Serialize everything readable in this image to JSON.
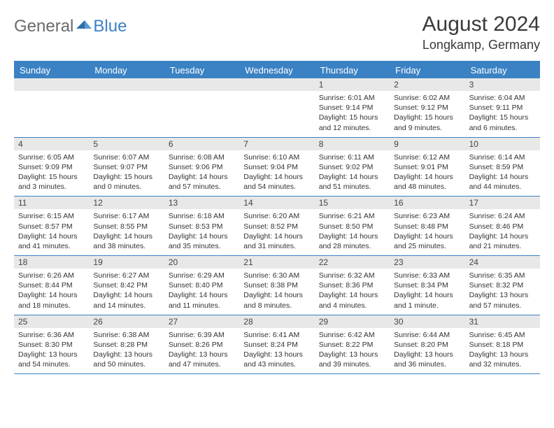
{
  "logo": {
    "text1": "General",
    "text2": "Blue"
  },
  "title": "August 2024",
  "location": "Longkamp, Germany",
  "colors": {
    "accent": "#3b82c4",
    "headerText": "#ffffff",
    "dayNumBg": "#e8e8e8",
    "bodyText": "#333333",
    "logoGray": "#6b6b6b"
  },
  "dayNames": [
    "Sunday",
    "Monday",
    "Tuesday",
    "Wednesday",
    "Thursday",
    "Friday",
    "Saturday"
  ],
  "weeks": [
    [
      null,
      null,
      null,
      null,
      {
        "n": "1",
        "sr": "6:01 AM",
        "ss": "9:14 PM",
        "dl": "15 hours and 12 minutes."
      },
      {
        "n": "2",
        "sr": "6:02 AM",
        "ss": "9:12 PM",
        "dl": "15 hours and 9 minutes."
      },
      {
        "n": "3",
        "sr": "6:04 AM",
        "ss": "9:11 PM",
        "dl": "15 hours and 6 minutes."
      }
    ],
    [
      {
        "n": "4",
        "sr": "6:05 AM",
        "ss": "9:09 PM",
        "dl": "15 hours and 3 minutes."
      },
      {
        "n": "5",
        "sr": "6:07 AM",
        "ss": "9:07 PM",
        "dl": "15 hours and 0 minutes."
      },
      {
        "n": "6",
        "sr": "6:08 AM",
        "ss": "9:06 PM",
        "dl": "14 hours and 57 minutes."
      },
      {
        "n": "7",
        "sr": "6:10 AM",
        "ss": "9:04 PM",
        "dl": "14 hours and 54 minutes."
      },
      {
        "n": "8",
        "sr": "6:11 AM",
        "ss": "9:02 PM",
        "dl": "14 hours and 51 minutes."
      },
      {
        "n": "9",
        "sr": "6:12 AM",
        "ss": "9:01 PM",
        "dl": "14 hours and 48 minutes."
      },
      {
        "n": "10",
        "sr": "6:14 AM",
        "ss": "8:59 PM",
        "dl": "14 hours and 44 minutes."
      }
    ],
    [
      {
        "n": "11",
        "sr": "6:15 AM",
        "ss": "8:57 PM",
        "dl": "14 hours and 41 minutes."
      },
      {
        "n": "12",
        "sr": "6:17 AM",
        "ss": "8:55 PM",
        "dl": "14 hours and 38 minutes."
      },
      {
        "n": "13",
        "sr": "6:18 AM",
        "ss": "8:53 PM",
        "dl": "14 hours and 35 minutes."
      },
      {
        "n": "14",
        "sr": "6:20 AM",
        "ss": "8:52 PM",
        "dl": "14 hours and 31 minutes."
      },
      {
        "n": "15",
        "sr": "6:21 AM",
        "ss": "8:50 PM",
        "dl": "14 hours and 28 minutes."
      },
      {
        "n": "16",
        "sr": "6:23 AM",
        "ss": "8:48 PM",
        "dl": "14 hours and 25 minutes."
      },
      {
        "n": "17",
        "sr": "6:24 AM",
        "ss": "8:46 PM",
        "dl": "14 hours and 21 minutes."
      }
    ],
    [
      {
        "n": "18",
        "sr": "6:26 AM",
        "ss": "8:44 PM",
        "dl": "14 hours and 18 minutes."
      },
      {
        "n": "19",
        "sr": "6:27 AM",
        "ss": "8:42 PM",
        "dl": "14 hours and 14 minutes."
      },
      {
        "n": "20",
        "sr": "6:29 AM",
        "ss": "8:40 PM",
        "dl": "14 hours and 11 minutes."
      },
      {
        "n": "21",
        "sr": "6:30 AM",
        "ss": "8:38 PM",
        "dl": "14 hours and 8 minutes."
      },
      {
        "n": "22",
        "sr": "6:32 AM",
        "ss": "8:36 PM",
        "dl": "14 hours and 4 minutes."
      },
      {
        "n": "23",
        "sr": "6:33 AM",
        "ss": "8:34 PM",
        "dl": "14 hours and 1 minute."
      },
      {
        "n": "24",
        "sr": "6:35 AM",
        "ss": "8:32 PM",
        "dl": "13 hours and 57 minutes."
      }
    ],
    [
      {
        "n": "25",
        "sr": "6:36 AM",
        "ss": "8:30 PM",
        "dl": "13 hours and 54 minutes."
      },
      {
        "n": "26",
        "sr": "6:38 AM",
        "ss": "8:28 PM",
        "dl": "13 hours and 50 minutes."
      },
      {
        "n": "27",
        "sr": "6:39 AM",
        "ss": "8:26 PM",
        "dl": "13 hours and 47 minutes."
      },
      {
        "n": "28",
        "sr": "6:41 AM",
        "ss": "8:24 PM",
        "dl": "13 hours and 43 minutes."
      },
      {
        "n": "29",
        "sr": "6:42 AM",
        "ss": "8:22 PM",
        "dl": "13 hours and 39 minutes."
      },
      {
        "n": "30",
        "sr": "6:44 AM",
        "ss": "8:20 PM",
        "dl": "13 hours and 36 minutes."
      },
      {
        "n": "31",
        "sr": "6:45 AM",
        "ss": "8:18 PM",
        "dl": "13 hours and 32 minutes."
      }
    ]
  ],
  "labels": {
    "sunrise": "Sunrise:",
    "sunset": "Sunset:",
    "daylight": "Daylight:"
  }
}
